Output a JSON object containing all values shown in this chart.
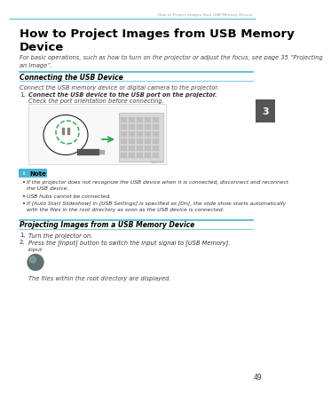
{
  "bg_color": "#ffffff",
  "header_line_color": "#4ab5d4",
  "header_text": "How to Project Images from USB Memory Device",
  "header_text_color": "#999999",
  "page_number": "49",
  "title_line1": "How to Project Images from USB Memory",
  "title_line2": "Device",
  "title_color": "#000000",
  "title_fontsize": 9.5,
  "intro_text": "For basic operations, such as how to turn on the projector or adjust the focus, see page 35 “Projecting\nan Image”.",
  "intro_fontsize": 4.8,
  "section1_title": "Connecting the USB Device",
  "section1_line_color": "#4ab5d4",
  "section1_body": "Connect the USB memory device or digital camera to the projector.",
  "step1_bold": "Connect the USB device to the USB port on the projector.",
  "step1_sub": "Check the port orientation before connecting.",
  "note_title": "Note",
  "note_bg": "#4ab5d4",
  "note_icon_color": "#4ab5d4",
  "note_bullets": [
    "If the projector does not recognize the USB device when it is connected, disconnect and reconnect\nthe USB device.",
    "USB hubs cannot be connected.",
    "If [Auto Start Slideshow] in [USB Settings] is specified as [On], the slide show starts automatically\nwith the files in the root directory as soon as the USB device is connected."
  ],
  "section2_title": "Projecting Images from a USB Memory Device",
  "section2_line_color": "#4ab5d4",
  "step2_1": "Turn the projector on.",
  "step2_2": "Press the [Input] button to switch the input signal to [USB Memory].",
  "input_label": "Input",
  "button_color": "#607070",
  "root_text": "The files within the root directory are displayed.",
  "tab_color": "#555555",
  "tab_text": "3",
  "tab_text_color": "#ffffff",
  "img_caption": "CAB011"
}
